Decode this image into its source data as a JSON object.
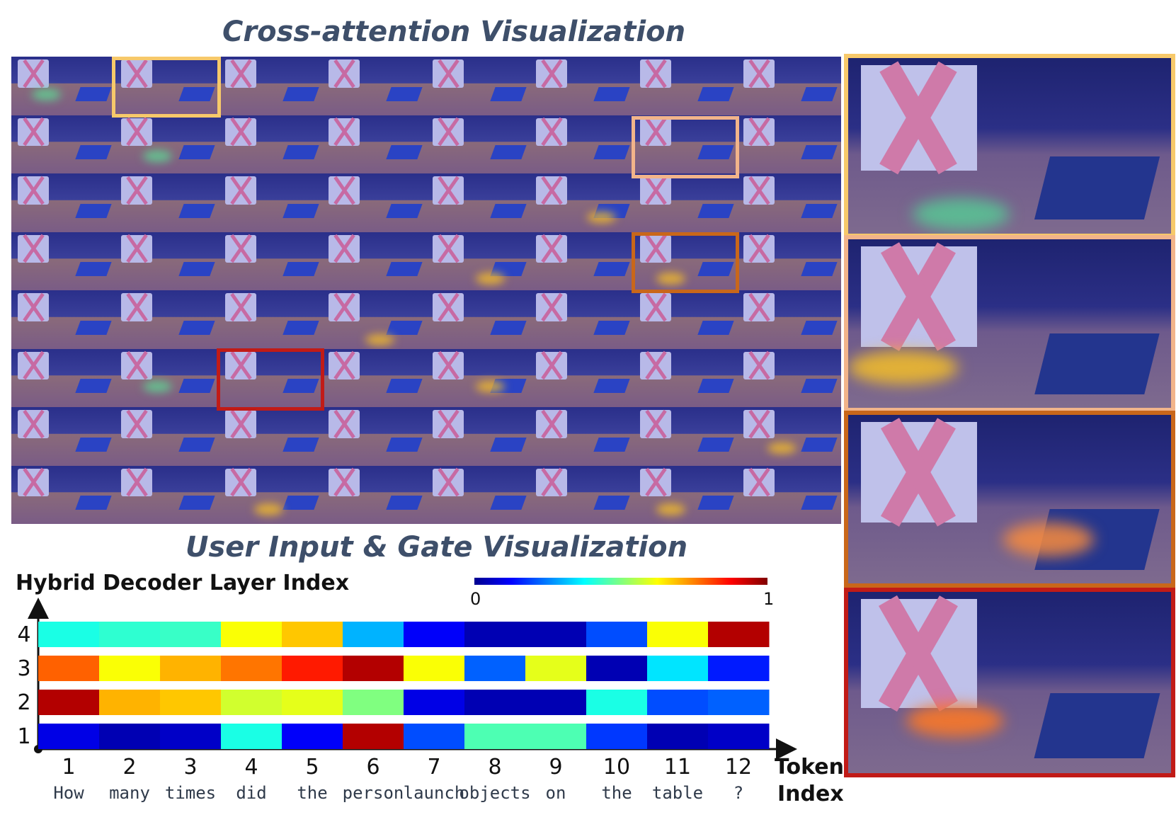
{
  "titles": {
    "cross_attention": "Cross-attention  Visualization",
    "gate": "User Input & Gate Visualization"
  },
  "y_axis_label": "Hybrid Decoder Layer Index",
  "x_axis_label": [
    "Token",
    "Index"
  ],
  "colorbar": {
    "min": "0",
    "max": "1"
  },
  "chart_data": {
    "type": "heatmap",
    "title": "User Input & Gate Visualization",
    "xlabel": "Token Index",
    "ylabel": "Hybrid Decoder Layer Index",
    "x": [
      "1",
      "2",
      "3",
      "4",
      "5",
      "6",
      "7",
      "8",
      "9",
      "10",
      "11",
      "12"
    ],
    "tokens": [
      "How",
      "many",
      "times",
      "did",
      "the",
      "person",
      "launch",
      "objects",
      "on",
      "the",
      "table",
      "?"
    ],
    "y": [
      "1",
      "2",
      "3",
      "4"
    ],
    "colormap": "jet",
    "vrange": [
      0,
      1
    ],
    "values": {
      "4": [
        0.4,
        0.42,
        0.43,
        0.62,
        0.68,
        0.3,
        0.12,
        0.05,
        0.05,
        0.2,
        0.62,
        0.95
      ],
      "3": [
        0.78,
        0.62,
        0.7,
        0.76,
        0.85,
        0.95,
        0.62,
        0.22,
        0.6,
        0.05,
        0.35,
        0.15
      ],
      "2": [
        0.95,
        0.7,
        0.68,
        0.58,
        0.6,
        0.5,
        0.1,
        0.05,
        0.05,
        0.4,
        0.2,
        0.22
      ],
      "1": [
        0.1,
        0.05,
        0.07,
        0.4,
        0.12,
        0.95,
        0.2,
        0.45,
        0.45,
        0.18,
        0.05,
        0.07
      ]
    }
  },
  "highlight_colors": [
    "#f7c96a",
    "#f2b48a",
    "#c9671a",
    "#c11b17"
  ]
}
